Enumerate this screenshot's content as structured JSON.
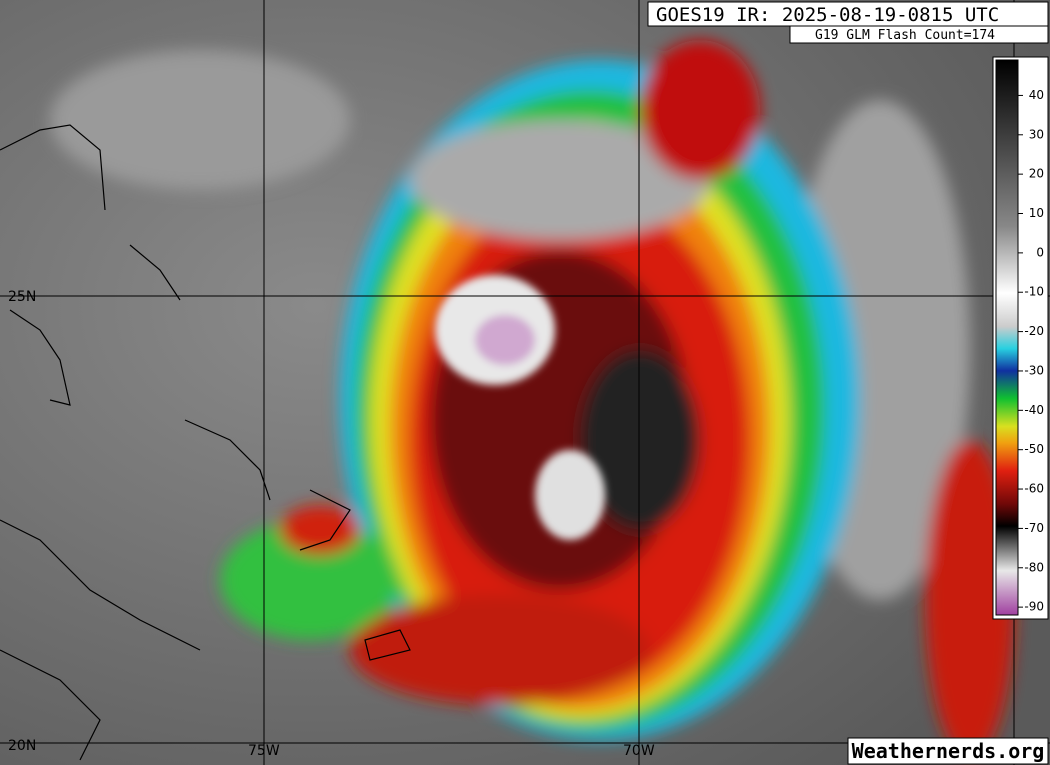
{
  "header": {
    "title": "GOES19 IR: 2025-08-19-0815 UTC",
    "subtitle": "G19 GLM Flash Count=174"
  },
  "map": {
    "lat_labels": [
      "25N",
      "20N"
    ],
    "lon_labels": [
      "75W",
      "70W"
    ]
  },
  "colorbar": {
    "range": [
      -92,
      49
    ],
    "ticks": [
      40,
      30,
      20,
      10,
      0,
      -10,
      -20,
      -30,
      -40,
      -50,
      -60,
      -70,
      -80,
      -90
    ]
  },
  "footer": {
    "credit": "Weathernerds.org"
  }
}
